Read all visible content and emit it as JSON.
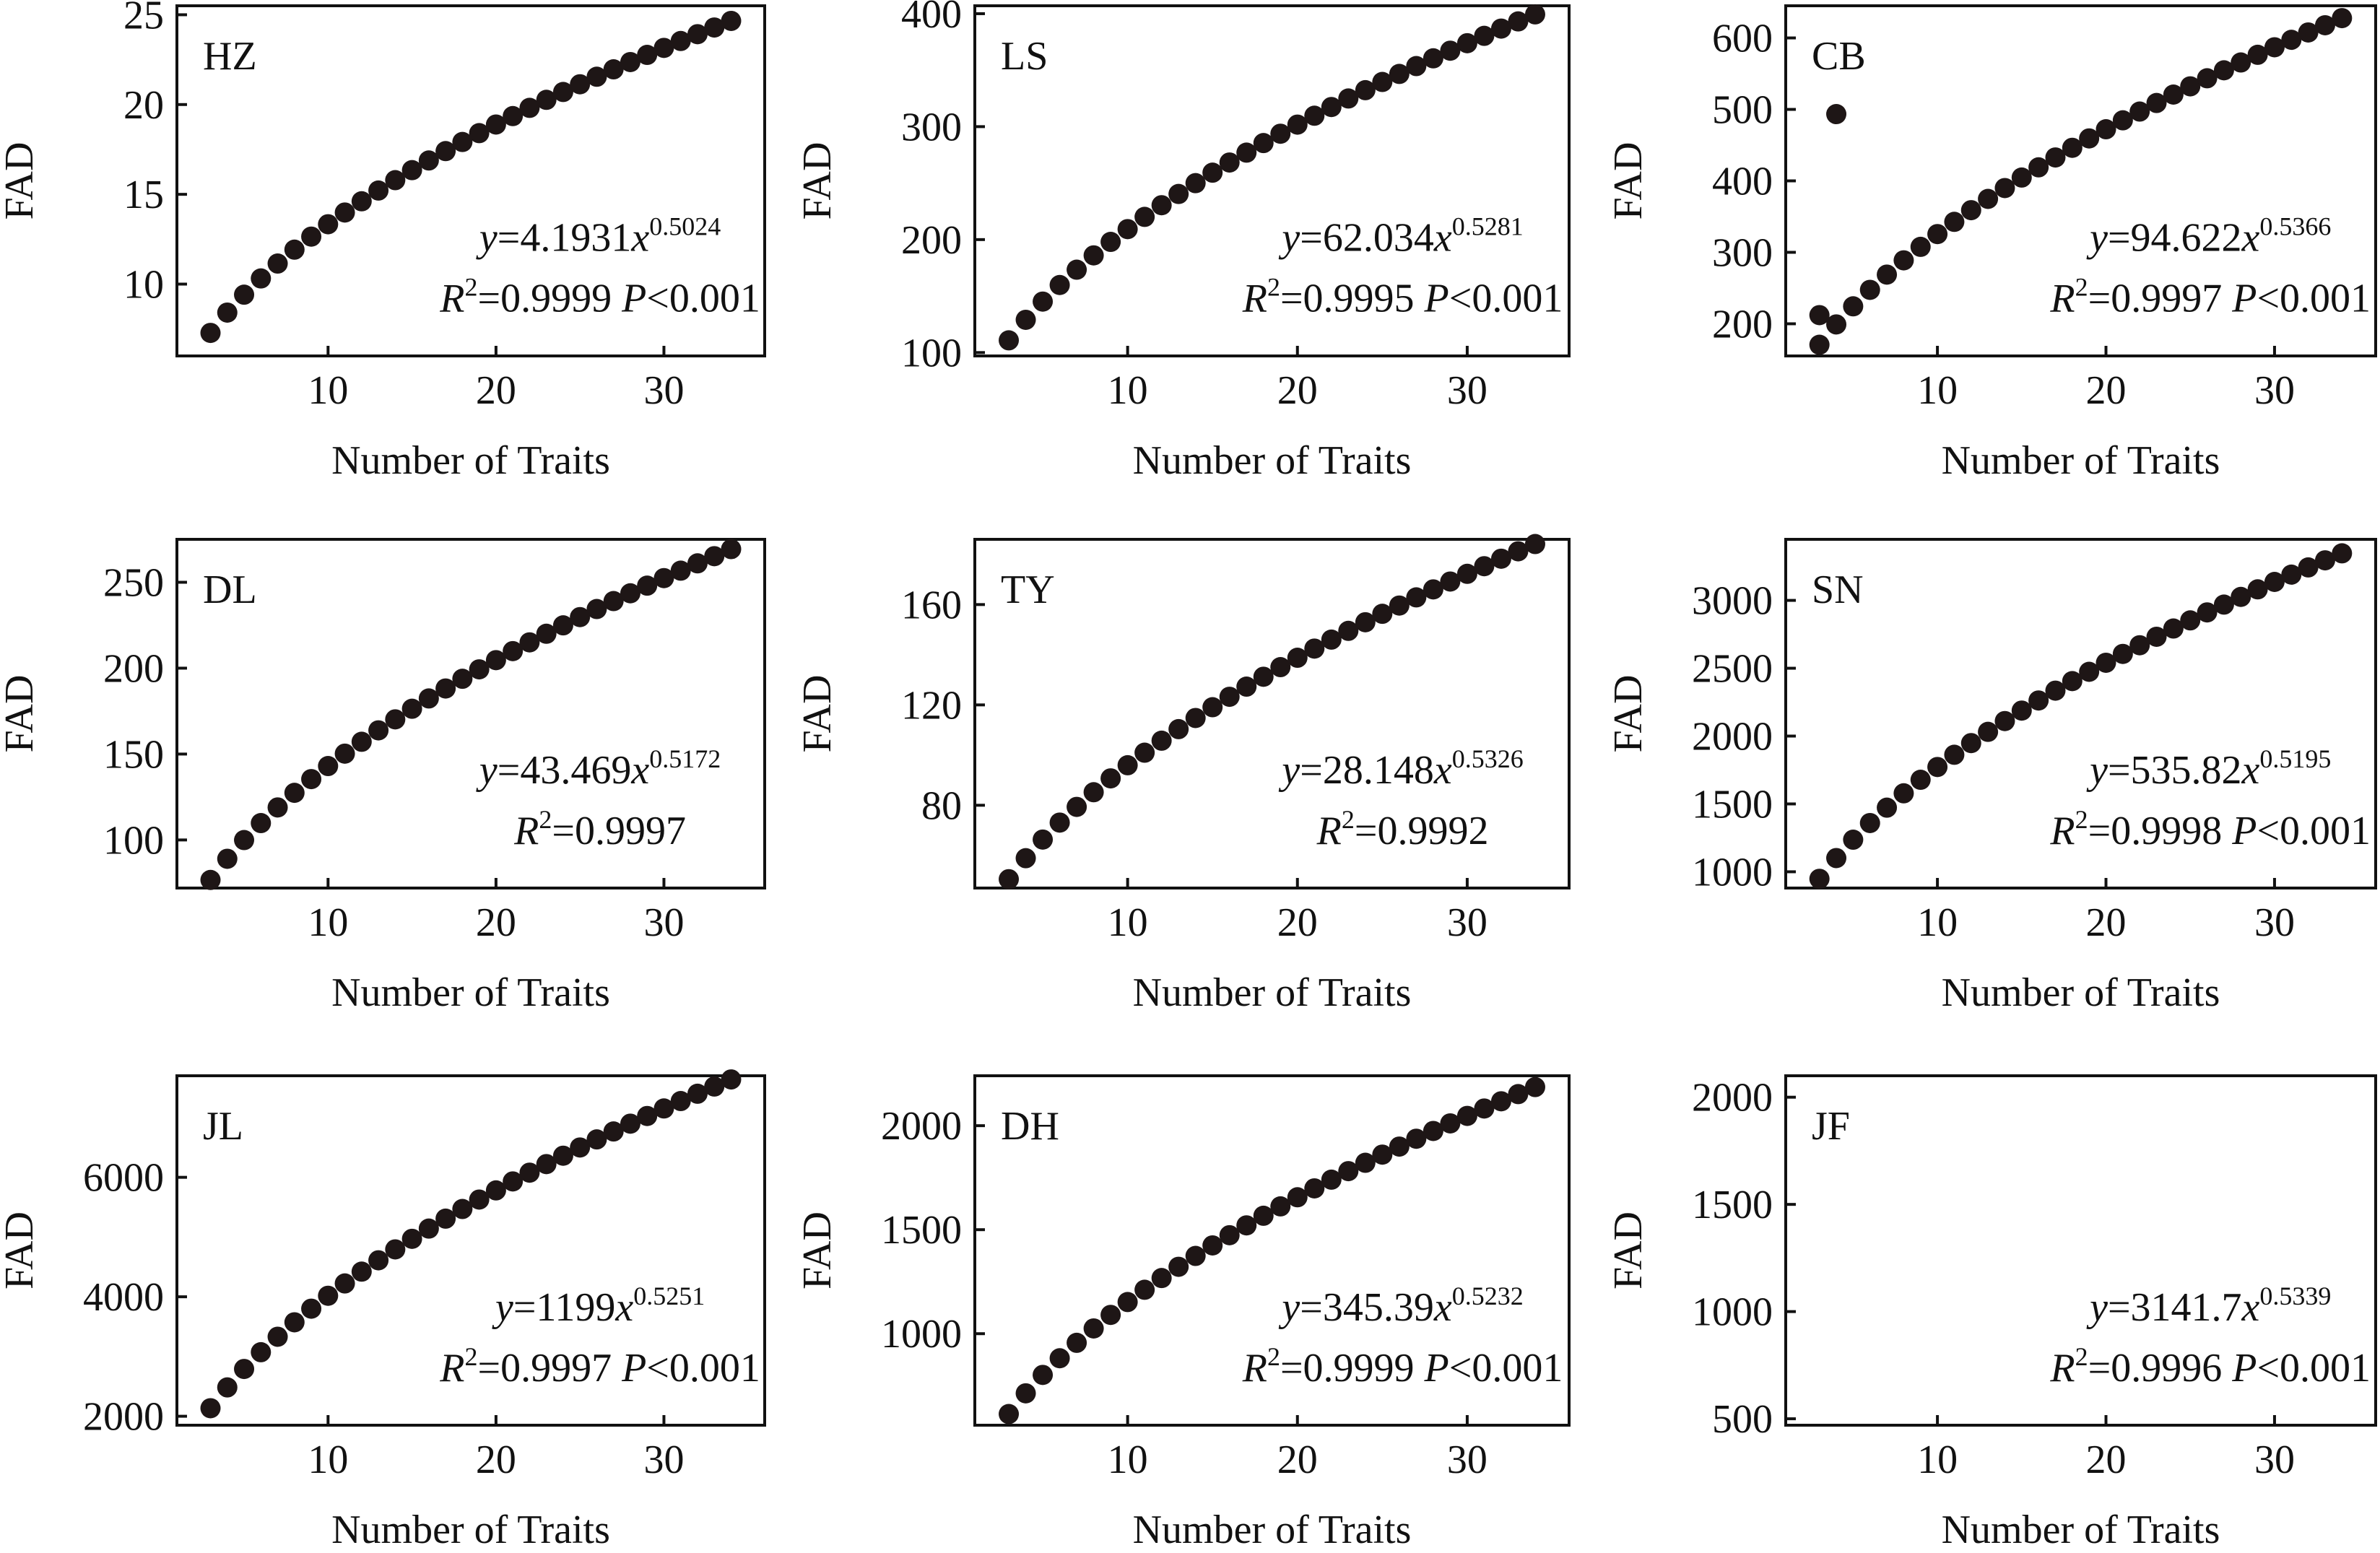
{
  "figure": {
    "x_values": [
      3,
      4,
      5,
      6,
      7,
      8,
      9,
      10,
      11,
      12,
      13,
      14,
      15,
      16,
      17,
      18,
      19,
      20,
      21,
      22,
      23,
      24,
      25,
      26,
      27,
      28,
      29,
      30,
      31,
      32,
      33,
      34
    ]
  },
  "chart_data": [
    {
      "type": "scatter",
      "panel": "HZ",
      "xlabel": "Number of Traits",
      "ylabel": "FAD",
      "xlim": [
        1,
        36
      ],
      "ylim": [
        6,
        25.5
      ],
      "xticks": [
        10,
        20,
        30
      ],
      "yticks": [
        10,
        15,
        20,
        25
      ],
      "model": {
        "a": 4.1931,
        "b": 0.5024
      },
      "equation": {
        "y_prefix": "y",
        "coef": "=4.1931",
        "x_var": "x",
        "exponent": "0.5024"
      },
      "r2": {
        "r": "R",
        "sup": "2",
        "value": "=0.9999 "
      },
      "p": {
        "p": "P",
        "value": "<0.001"
      }
    },
    {
      "type": "scatter",
      "panel": "LS",
      "xlabel": "Number of Traits",
      "ylabel": "FAD",
      "xlim": [
        1,
        36
      ],
      "ylim": [
        97,
        407
      ],
      "xticks": [
        10,
        20,
        30
      ],
      "yticks": [
        100,
        200,
        300,
        400
      ],
      "model": {
        "a": 62.034,
        "b": 0.5281
      },
      "equation": {
        "y_prefix": "y",
        "coef": "=62.034",
        "x_var": "x",
        "exponent": "0.5281"
      },
      "r2": {
        "r": "R",
        "sup": "2",
        "value": "=0.9995 "
      },
      "p": {
        "p": "P",
        "value": "<0.001"
      }
    },
    {
      "type": "scatter",
      "panel": "CB",
      "xlabel": "Number of Traits",
      "ylabel": "FAD",
      "xlim": [
        1,
        36
      ],
      "ylim": [
        155,
        645
      ],
      "xticks": [
        10,
        20,
        30
      ],
      "yticks": [
        200,
        300,
        400,
        500,
        600
      ],
      "model": {
        "a": 94.622,
        "b": 0.5366
      },
      "equation": {
        "y_prefix": "y",
        "coef": "=94.622",
        "x_var": "x",
        "exponent": "0.5366"
      },
      "r2": {
        "r": "R",
        "sup": "2",
        "value": "=0.9997 "
      },
      "p": {
        "p": "P",
        "value": "<0.001"
      }
    },
    {
      "type": "scatter",
      "panel": "DL",
      "xlabel": "Number of Traits",
      "ylabel": "FAD",
      "xlim": [
        1,
        36
      ],
      "ylim": [
        72,
        275
      ],
      "xticks": [
        10,
        20,
        30
      ],
      "yticks": [
        100,
        150,
        200,
        250
      ],
      "model": {
        "a": 43.469,
        "b": 0.5172
      },
      "equation": {
        "y_prefix": "y",
        "coef": "=43.469",
        "x_var": "x",
        "exponent": "0.5172"
      },
      "r2": {
        "r": "R",
        "sup": "2",
        "value": "=0.9997"
      },
      "p": null
    },
    {
      "type": "scatter",
      "panel": "TY",
      "xlabel": "Number of Traits",
      "ylabel": "FAD",
      "xlim": [
        1,
        36
      ],
      "ylim": [
        47,
        186
      ],
      "xticks": [
        10,
        20,
        30
      ],
      "yticks": [
        80,
        120,
        160
      ],
      "model": {
        "a": 28.148,
        "b": 0.5326
      },
      "equation": {
        "y_prefix": "y",
        "coef": "=28.148",
        "x_var": "x",
        "exponent": "0.5326"
      },
      "r2": {
        "r": "R",
        "sup": "2",
        "value": "=0.9992"
      },
      "p": null
    },
    {
      "type": "scatter",
      "panel": "SN",
      "xlabel": "Number of Traits",
      "ylabel": "FAD",
      "xlim": [
        1,
        36
      ],
      "ylim": [
        880,
        3450
      ],
      "xticks": [
        10,
        20,
        30
      ],
      "yticks": [
        1000,
        1500,
        2000,
        2500,
        3000
      ],
      "model": {
        "a": 535.82,
        "b": 0.5195
      },
      "equation": {
        "y_prefix": "y",
        "coef": "=535.82",
        "x_var": "x",
        "exponent": "0.5195"
      },
      "r2": {
        "r": "R",
        "sup": "2",
        "value": "=0.9998 "
      },
      "p": {
        "p": "P",
        "value": "<0.001"
      }
    },
    {
      "type": "scatter",
      "panel": "JL",
      "xlabel": "Number of Traits",
      "ylabel": "FAD",
      "xlim": [
        1,
        36
      ],
      "ylim": [
        1850,
        7700
      ],
      "xticks": [
        10,
        20,
        30
      ],
      "yticks": [
        2000,
        4000,
        6000
      ],
      "model": {
        "a": 1199,
        "b": 0.5251
      },
      "equation": {
        "y_prefix": "y",
        "coef": "=1199",
        "x_var": "x",
        "exponent": "0.5251"
      },
      "r2": {
        "r": "R",
        "sup": "2",
        "value": "=0.9997 "
      },
      "p": {
        "p": "P",
        "value": "<0.001"
      }
    },
    {
      "type": "scatter",
      "panel": "DH",
      "xlabel": "Number of Traits",
      "ylabel": "FAD",
      "xlim": [
        1,
        36
      ],
      "ylim": [
        560,
        2240
      ],
      "xticks": [
        10,
        20,
        30
      ],
      "yticks": [
        1000,
        1500,
        2000
      ],
      "model": {
        "a": 345.39,
        "b": 0.5232
      },
      "equation": {
        "y_prefix": "y",
        "coef": "=345.39",
        "x_var": "x",
        "exponent": "0.5232"
      },
      "r2": {
        "r": "R",
        "sup": "2",
        "value": "=0.9999 "
      },
      "p": {
        "p": "P",
        "value": "<0.001"
      }
    },
    {
      "type": "scatter",
      "panel": "JF",
      "xlabel": "Number of Traits",
      "ylabel": "FAD",
      "xlim": [
        1,
        36
      ],
      "ylim": [
        470,
        2100
      ],
      "xticks": [
        10,
        20,
        30
      ],
      "yticks": [
        500,
        1000,
        1500,
        2000
      ],
      "model": {
        "a": 3141.7,
        "b": 0.5339
      },
      "equation": {
        "y_prefix": "y",
        "coef": "=3141.7",
        "x_var": "x",
        "exponent": "0.5339"
      },
      "r2": {
        "r": "R",
        "sup": "2",
        "value": "=0.9996 "
      },
      "p": {
        "p": "P",
        "value": "<0.001"
      }
    }
  ]
}
